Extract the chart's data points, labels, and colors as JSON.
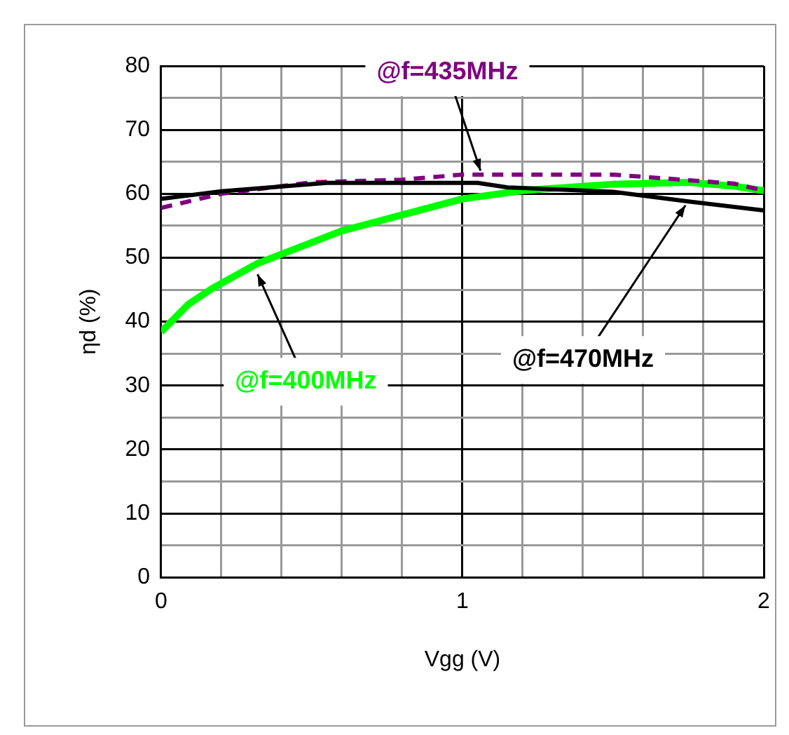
{
  "chart_data": {
    "type": "line",
    "xlabel": "Vgg (V)",
    "ylabel": "ηd (%)",
    "xlim": [
      0,
      2
    ],
    "xticks": [
      0,
      {
        "value": 0.2,
        "label": null
      },
      {
        "value": 0.4,
        "label": null
      },
      {
        "value": 0.6,
        "label": null
      },
      {
        "value": 0.8,
        "label": null
      },
      1,
      {
        "value": 1.2,
        "label": null
      },
      {
        "value": 1.4,
        "label": null
      },
      {
        "value": 1.6,
        "label": null
      },
      {
        "value": 1.8,
        "label": null
      },
      2
    ],
    "ylim": [
      0,
      80
    ],
    "yticks": [
      0,
      {
        "value": 5,
        "label": null
      },
      10,
      {
        "value": 15,
        "label": null
      },
      20,
      {
        "value": 25,
        "label": null
      },
      30,
      {
        "value": 35,
        "label": null
      },
      40,
      {
        "value": 45,
        "label": null
      },
      50,
      {
        "value": 55,
        "label": null
      },
      60,
      {
        "value": 65,
        "label": null
      },
      70,
      {
        "value": 75,
        "label": null
      },
      80
    ],
    "grid": true,
    "legend": false,
    "marker": "none",
    "series": [
      {
        "color": "#00ff00",
        "line_style": "solid",
        "x": [
          0,
          0.09,
          0.17,
          0.32,
          0.6,
          0.8,
          1.0,
          1.2,
          1.5,
          1.75,
          1.9,
          2.0
        ],
        "values": [
          38.4,
          42.7,
          45.2,
          49.1,
          54.2,
          56.7,
          59.2,
          60.5,
          61.5,
          61.8,
          61.2,
          60.5
        ]
      },
      {
        "color": "#800080",
        "line_style": "dashed",
        "x": [
          0,
          0.2,
          0.5,
          0.8,
          1.0,
          1.5,
          1.9,
          2.0
        ],
        "values": [
          57.8,
          60,
          61.8,
          62.2,
          63,
          63,
          61.6,
          60.5
        ]
      },
      {
        "color": "#000000",
        "line_style": "solid",
        "x": [
          0,
          0.2,
          0.55,
          1.05,
          1.15,
          1.5,
          1.75,
          2.0
        ],
        "values": [
          59.2,
          60.4,
          61.7,
          61.7,
          61,
          60.3,
          58.8,
          57.4
        ]
      }
    ],
    "annotations": [
      {
        "text": "@f=400MHz",
        "x": 0.32,
        "y": 47.4
      },
      {
        "text": "@f=435MHz",
        "x": 1.06,
        "y": 63.6
      },
      {
        "text": "@f=470MHz",
        "x": 1.74,
        "y": 58.2
      }
    ]
  }
}
